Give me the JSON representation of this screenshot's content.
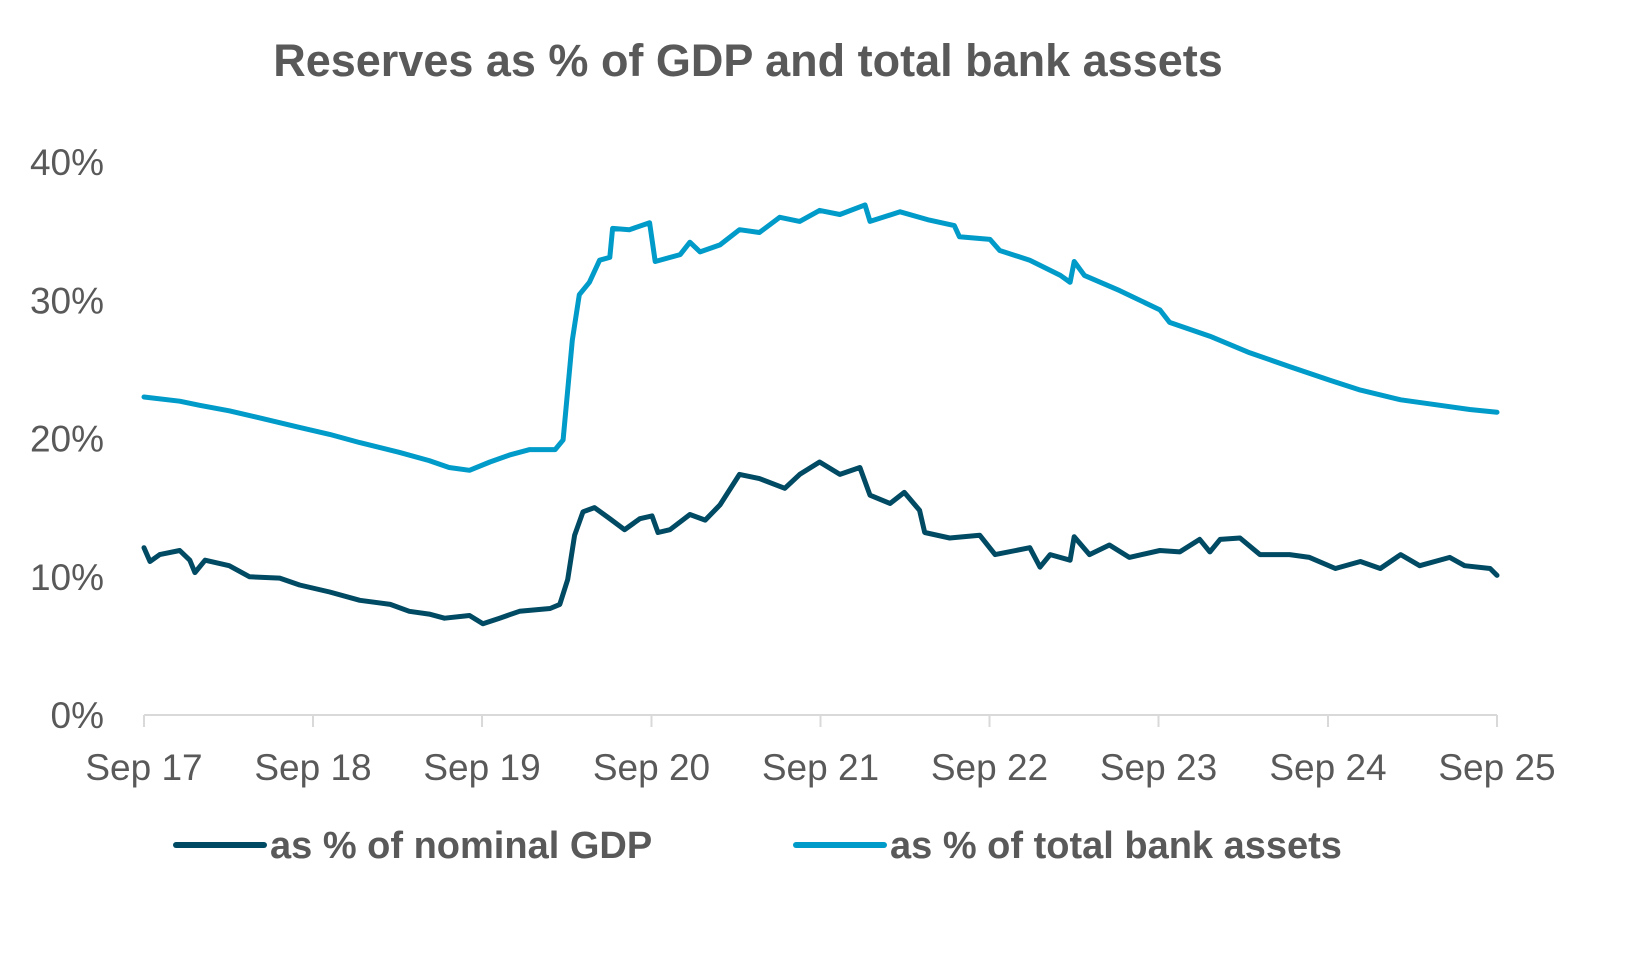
{
  "chart_data": {
    "type": "line",
    "title": "Reserves as % of GDP and total bank assets",
    "xlabel": "",
    "ylabel": "",
    "x_tick_labels": [
      "Sep 17",
      "Sep 18",
      "Sep 19",
      "Sep 20",
      "Sep 21",
      "Sep 22",
      "Sep 23",
      "Sep 24",
      "Sep 25"
    ],
    "x_ticks": [
      "2017-09-01",
      "2018-09-01",
      "2019-09-01",
      "2020-09-01",
      "2021-09-01",
      "2022-09-01",
      "2023-09-01",
      "2024-09-01",
      "2025-09-01"
    ],
    "xlim": [
      "2017-09-01",
      "2025-09-01"
    ],
    "y_tick_labels": [
      "0%",
      "10%",
      "20%",
      "30%",
      "40%"
    ],
    "y_ticks": [
      0,
      10,
      20,
      30,
      40
    ],
    "ylim": [
      0,
      40
    ],
    "grid": false,
    "legend_position": "bottom",
    "series": [
      {
        "name": "as % of nominal GDP",
        "color": "#004a63",
        "points": [
          [
            "2017-09-01",
            12.1
          ],
          [
            "2017-09-14",
            11.1
          ],
          [
            "2017-10-05",
            11.6
          ],
          [
            "2017-11-17",
            11.9
          ],
          [
            "2017-12-09",
            11.2
          ],
          [
            "2017-12-20",
            10.3
          ],
          [
            "2018-01-11",
            11.2
          ],
          [
            "2018-03-04",
            10.8
          ],
          [
            "2018-04-17",
            10.0
          ],
          [
            "2018-06-21",
            9.9
          ],
          [
            "2018-08-03",
            9.4
          ],
          [
            "2018-10-07",
            8.9
          ],
          [
            "2018-12-11",
            8.3
          ],
          [
            "2019-02-15",
            8.0
          ],
          [
            "2019-03-28",
            7.5
          ],
          [
            "2019-05-10",
            7.3
          ],
          [
            "2019-06-12",
            7.0
          ],
          [
            "2019-08-05",
            7.2
          ],
          [
            "2019-09-03",
            6.6
          ],
          [
            "2019-10-09",
            7.0
          ],
          [
            "2019-11-21",
            7.5
          ],
          [
            "2020-01-26",
            7.7
          ],
          [
            "2020-02-16",
            8.0
          ],
          [
            "2020-03-04",
            9.8
          ],
          [
            "2020-03-19",
            13.0
          ],
          [
            "2020-04-06",
            14.7
          ],
          [
            "2020-05-01",
            15.0
          ],
          [
            "2020-06-03",
            14.2
          ],
          [
            "2020-07-05",
            13.4
          ],
          [
            "2020-08-07",
            14.2
          ],
          [
            "2020-09-02",
            14.4
          ],
          [
            "2020-09-15",
            13.2
          ],
          [
            "2020-10-11",
            13.4
          ],
          [
            "2020-11-23",
            14.5
          ],
          [
            "2020-12-26",
            14.1
          ],
          [
            "2021-01-27",
            15.2
          ],
          [
            "2021-03-10",
            17.4
          ],
          [
            "2021-04-22",
            17.1
          ],
          [
            "2021-06-16",
            16.4
          ],
          [
            "2021-07-18",
            17.4
          ],
          [
            "2021-08-30",
            18.3
          ],
          [
            "2021-10-13",
            17.4
          ],
          [
            "2021-11-25",
            17.9
          ],
          [
            "2021-12-17",
            15.9
          ],
          [
            "2022-01-29",
            15.3
          ],
          [
            "2022-03-01",
            16.1
          ],
          [
            "2022-04-03",
            14.8
          ],
          [
            "2022-04-14",
            13.2
          ],
          [
            "2022-06-07",
            12.8
          ],
          [
            "2022-08-11",
            13.0
          ],
          [
            "2022-09-13",
            11.6
          ],
          [
            "2022-11-27",
            12.1
          ],
          [
            "2022-12-19",
            10.7
          ],
          [
            "2023-01-10",
            11.6
          ],
          [
            "2023-02-22",
            11.2
          ],
          [
            "2023-03-03",
            12.9
          ],
          [
            "2023-04-05",
            11.6
          ],
          [
            "2023-05-18",
            12.3
          ],
          [
            "2023-06-30",
            11.4
          ],
          [
            "2023-09-04",
            11.9
          ],
          [
            "2023-10-17",
            11.8
          ],
          [
            "2023-11-29",
            12.7
          ],
          [
            "2023-12-21",
            11.8
          ],
          [
            "2024-01-12",
            12.7
          ],
          [
            "2024-02-24",
            12.8
          ],
          [
            "2024-04-07",
            11.6
          ],
          [
            "2024-06-10",
            11.6
          ],
          [
            "2024-07-23",
            11.4
          ],
          [
            "2024-09-17",
            10.6
          ],
          [
            "2024-11-10",
            11.1
          ],
          [
            "2024-12-23",
            10.6
          ],
          [
            "2025-02-05",
            11.6
          ],
          [
            "2025-03-18",
            10.8
          ],
          [
            "2025-05-22",
            11.4
          ],
          [
            "2025-06-23",
            10.8
          ],
          [
            "2025-08-17",
            10.6
          ],
          [
            "2025-09-01",
            10.1
          ]
        ]
      },
      {
        "name": "as % of total bank assets",
        "color": "#009bc9",
        "points": [
          [
            "2017-09-01",
            23.0
          ],
          [
            "2017-11-17",
            22.7
          ],
          [
            "2017-12-30",
            22.4
          ],
          [
            "2018-03-04",
            22.0
          ],
          [
            "2018-05-08",
            21.5
          ],
          [
            "2018-08-03",
            20.8
          ],
          [
            "2018-10-07",
            20.3
          ],
          [
            "2018-12-11",
            19.7
          ],
          [
            "2019-03-06",
            19.0
          ],
          [
            "2019-05-10",
            18.4
          ],
          [
            "2019-06-22",
            17.9
          ],
          [
            "2019-08-05",
            17.7
          ],
          [
            "2019-09-18",
            18.3
          ],
          [
            "2019-10-30",
            18.8
          ],
          [
            "2019-12-13",
            19.2
          ],
          [
            "2020-02-06",
            19.2
          ],
          [
            "2020-02-23",
            19.9
          ],
          [
            "2020-03-04",
            23.5
          ],
          [
            "2020-03-14",
            27.1
          ],
          [
            "2020-03-29",
            30.4
          ],
          [
            "2020-04-20",
            31.3
          ],
          [
            "2020-05-12",
            32.9
          ],
          [
            "2020-06-03",
            33.1
          ],
          [
            "2020-06-09",
            35.2
          ],
          [
            "2020-07-15",
            35.1
          ],
          [
            "2020-08-28",
            35.6
          ],
          [
            "2020-09-09",
            32.8
          ],
          [
            "2020-11-02",
            33.3
          ],
          [
            "2020-11-23",
            34.2
          ],
          [
            "2020-12-15",
            33.5
          ],
          [
            "2021-01-27",
            34.0
          ],
          [
            "2021-03-10",
            35.1
          ],
          [
            "2021-04-22",
            34.9
          ],
          [
            "2021-06-05",
            36.0
          ],
          [
            "2021-07-18",
            35.7
          ],
          [
            "2021-08-30",
            36.5
          ],
          [
            "2021-10-13",
            36.2
          ],
          [
            "2021-12-06",
            36.9
          ],
          [
            "2021-12-17",
            35.7
          ],
          [
            "2022-02-20",
            36.4
          ],
          [
            "2022-04-24",
            35.8
          ],
          [
            "2022-06-17",
            35.4
          ],
          [
            "2022-06-28",
            34.6
          ],
          [
            "2022-09-02",
            34.4
          ],
          [
            "2022-09-23",
            33.6
          ],
          [
            "2022-11-27",
            32.9
          ],
          [
            "2023-02-01",
            31.8
          ],
          [
            "2023-02-22",
            31.3
          ],
          [
            "2023-03-03",
            32.8
          ],
          [
            "2023-03-25",
            31.8
          ],
          [
            "2023-06-09",
            30.7
          ],
          [
            "2023-09-04",
            29.3
          ],
          [
            "2023-09-25",
            28.4
          ],
          [
            "2023-12-21",
            27.4
          ],
          [
            "2024-03-16",
            26.2
          ],
          [
            "2024-06-10",
            25.2
          ],
          [
            "2024-09-06",
            24.2
          ],
          [
            "2024-11-10",
            23.5
          ],
          [
            "2025-02-05",
            22.8
          ],
          [
            "2025-05-01",
            22.4
          ],
          [
            "2025-07-04",
            22.1
          ],
          [
            "2025-09-01",
            21.9
          ]
        ]
      }
    ]
  }
}
